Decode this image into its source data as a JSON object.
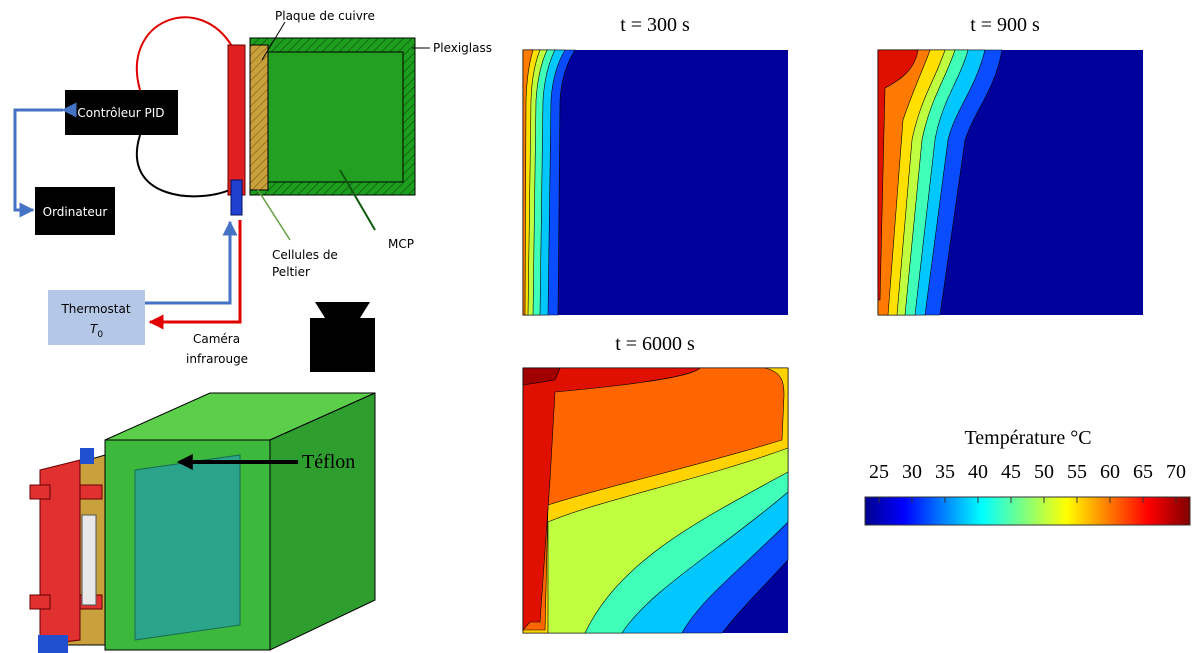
{
  "schematic": {
    "plaque": "Plaque de cuivre",
    "plexiglass": "Plexiglass",
    "controleur": "Contrôleur PID",
    "ordinateur": "Ordinateur",
    "cellules": [
      "Cellules de",
      "Peltier"
    ],
    "mcp": "MCP",
    "thermostat": "Thermostat",
    "thermostat_symbol": {
      "base": "T",
      "sub": "0"
    },
    "camera": [
      "Caméra",
      "infrarouge"
    ]
  },
  "model": {
    "label": "Téflon"
  },
  "contours": [
    {
      "title": "t = 300 s"
    },
    {
      "title": "t = 900 s"
    },
    {
      "title": "t = 6000 s"
    }
  ],
  "colorbar": {
    "title": "Température °C",
    "ticks": [
      25,
      30,
      35,
      40,
      45,
      50,
      55,
      60,
      65,
      70
    ]
  }
}
